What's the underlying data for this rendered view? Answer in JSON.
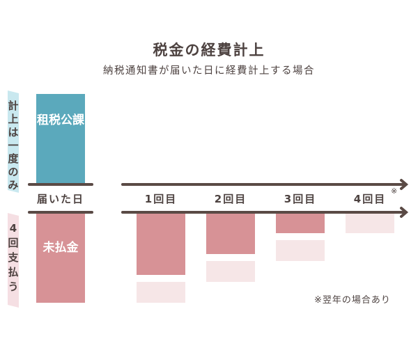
{
  "title": "税金の経費計上",
  "subtitle": "納税通知書が届いた日に経費計上する場合",
  "colors": {
    "accent_blue": "#5ba9bc",
    "accent_pink": "#d79296",
    "light_pink": "#f6e6e7",
    "strip_blue": "#c9e8ef",
    "strip_pink": "#f5dfe3",
    "text": "#4d4240"
  },
  "left": {
    "upper_side_label": "計上は一度のみ",
    "lower_side_label": "4回支払う",
    "upper_box": "租税公課",
    "lower_box": "未払金",
    "day_label": "届いた日"
  },
  "payments": [
    {
      "label": "1回目"
    },
    {
      "label": "2回目"
    },
    {
      "label": "3回目"
    },
    {
      "label": "4回目",
      "mark": "※"
    }
  ],
  "footnote": "※翌年の場合あり"
}
